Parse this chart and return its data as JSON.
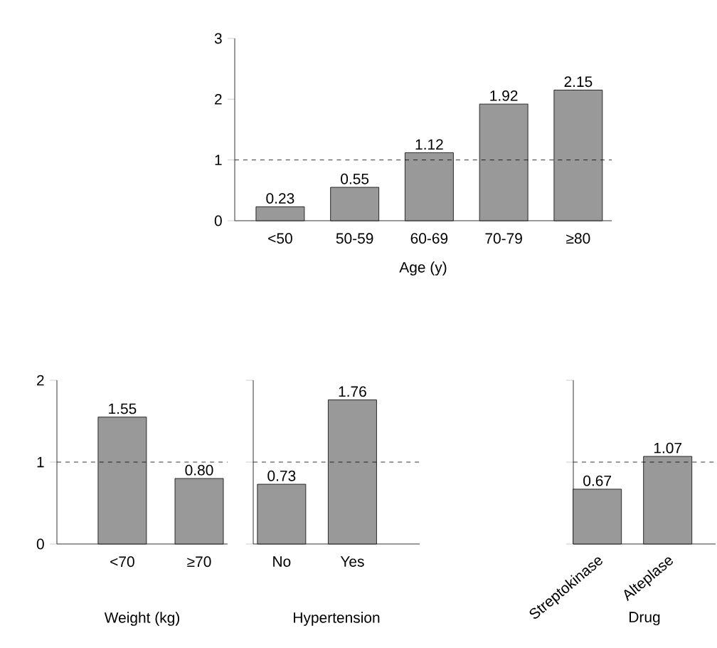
{
  "chart_data": [
    {
      "type": "bar",
      "categories": [
        "<50",
        "50-59",
        "60-69",
        "70-79",
        "≥80"
      ],
      "values": [
        0.23,
        0.55,
        1.12,
        1.92,
        2.15
      ],
      "value_labels": [
        "0.23",
        "0.55",
        "1.12",
        "1.92",
        "2.15"
      ],
      "color": "#999999",
      "ylim": [
        0,
        3
      ],
      "yticks": [
        0,
        1,
        2,
        3
      ],
      "xlabel": "Age (y)",
      "ref_lines": [
        {
          "axis": "y",
          "value": 1,
          "line_style": "dashed"
        }
      ]
    },
    {
      "type": "bar",
      "categories": [
        "<70",
        "≥70"
      ],
      "values": [
        1.55,
        0.8
      ],
      "value_labels": [
        "1.55",
        "0.80"
      ],
      "color": "#999999",
      "ylim": [
        0,
        2
      ],
      "yticks": [
        0,
        1,
        2
      ],
      "xlabel": "Weight (kg)",
      "ref_lines": [
        {
          "axis": "y",
          "value": 1,
          "line_style": "dashed"
        }
      ]
    },
    {
      "type": "bar",
      "categories": [
        "No",
        "Yes"
      ],
      "values": [
        0.73,
        1.76
      ],
      "value_labels": [
        "0.73",
        "1.76"
      ],
      "color": "#999999",
      "ylim": [
        0,
        2
      ],
      "yticks": [
        0,
        1,
        2
      ],
      "tick_labels": "x",
      "xlabel": "Hypertension",
      "ref_lines": [
        {
          "axis": "y",
          "value": 1,
          "line_style": "dashed"
        }
      ]
    },
    {
      "type": "bar",
      "categories": [
        "Streptokinase",
        "Alteplase"
      ],
      "values": [
        0.67,
        1.07
      ],
      "value_labels": [
        "0.67",
        "1.07"
      ],
      "color": "#999999",
      "ylim": [
        0,
        2
      ],
      "yticks": [
        0,
        1,
        2
      ],
      "tick_labels": "x",
      "xlabel": "Drug",
      "ref_lines": [
        {
          "axis": "y",
          "value": 1,
          "line_style": "dashed"
        }
      ]
    }
  ]
}
